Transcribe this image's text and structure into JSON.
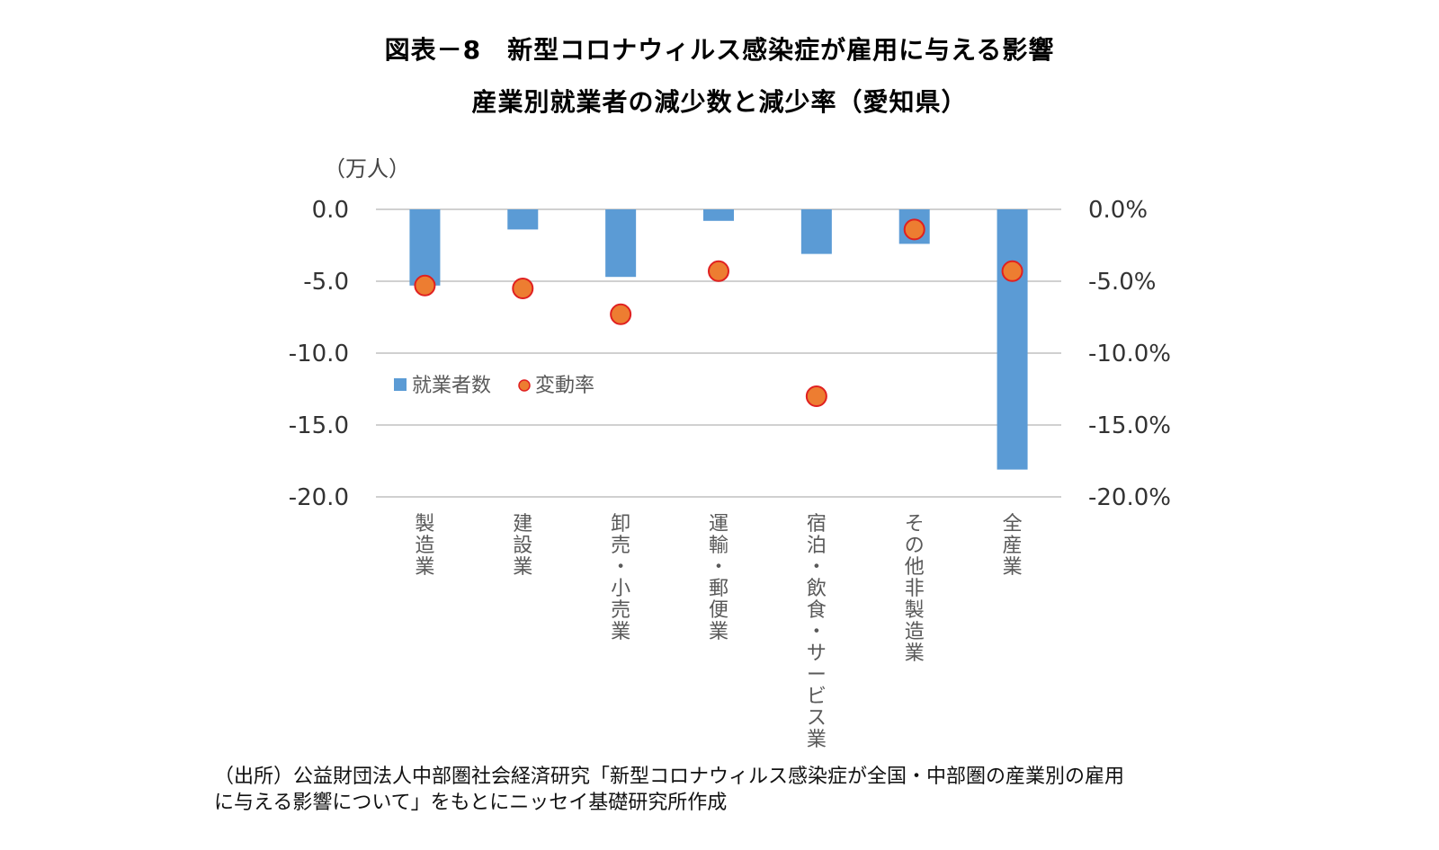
{
  "title_line1": "図表－8　新型コロナウィルス感染症が雇用に与える影響",
  "title_line2": "産業別就業者の減少数と減少率（愛知県）",
  "source_line1": "（出所）公益財団法人中部圏社会経済研究「新型コロナウィルス感染症が全国・中部圏の産業別の雇用",
  "source_line2": "に与える影響について」をもとにニッセイ基礎研究所作成",
  "chart_data": {
    "type": "bar",
    "unit_label": "（万人）",
    "categories": [
      "製造業",
      "建設業",
      "卸売・小売業",
      "運輸・郵便業",
      "宿泊・飲食・サービス業",
      "その他非製造業",
      "全産業"
    ],
    "series": [
      {
        "name": "就業者数",
        "type": "bar",
        "axis": "left",
        "color": "#5b9bd5",
        "values": [
          -5.3,
          -1.4,
          -4.7,
          -0.8,
          -3.1,
          -2.4,
          -18.1
        ]
      },
      {
        "name": "変動率",
        "type": "scatter",
        "axis": "right",
        "color": "#ed7d31",
        "border": "#e02020",
        "values": [
          -5.3,
          -5.5,
          -7.3,
          -4.3,
          -13.0,
          -1.4,
          -4.3
        ]
      }
    ],
    "y_left": {
      "min": -20,
      "max": 0,
      "ticks": [
        "0.0",
        "-5.0",
        "-10.0",
        "-15.0",
        "-20.0"
      ]
    },
    "y_right": {
      "min": -20,
      "max": 0,
      "ticks": [
        "0.0%",
        "-5.0%",
        "-10.0%",
        "-15.0%",
        "-20.0%"
      ]
    },
    "grid": true,
    "legend_position": "inside-left"
  }
}
